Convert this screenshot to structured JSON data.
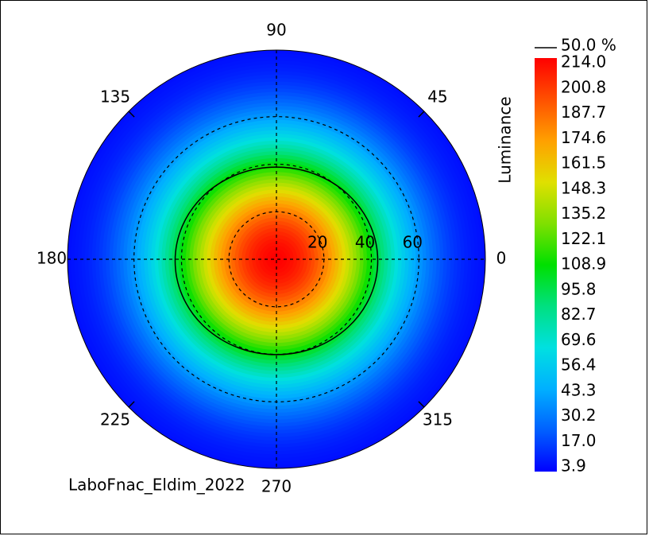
{
  "chart_data": {
    "type": "heatmap",
    "subtype": "polar",
    "quantity": "Luminance",
    "footer_label": "LaboFnac_Eldim_2022",
    "angle_ticks": [
      {
        "deg": 90,
        "label": "90"
      },
      {
        "deg": 45,
        "label": "45"
      },
      {
        "deg": 0,
        "label": "0"
      },
      {
        "deg": 315,
        "label": "315"
      },
      {
        "deg": 270,
        "label": "270"
      },
      {
        "deg": 225,
        "label": "225"
      },
      {
        "deg": 180,
        "label": "180"
      },
      {
        "deg": 135,
        "label": "135"
      }
    ],
    "radial_ticks": [
      {
        "value": 20,
        "label": "20"
      },
      {
        "value": 40,
        "label": "40"
      },
      {
        "value": 60,
        "label": "60"
      }
    ],
    "radial_max": 88,
    "value_range": [
      3.9,
      214.0
    ],
    "peak": {
      "azimuth_deg": 0,
      "incidence": 0,
      "value": 214.0
    },
    "contour": {
      "label": "50.0 %",
      "value": 108.9
    },
    "colorbar_labels": [
      "214.0",
      "200.8",
      "187.7",
      "174.6",
      "161.5",
      "148.3",
      "135.2",
      "122.1",
      "108.9",
      "95.8",
      "82.7",
      "69.6",
      "56.4",
      "43.3",
      "30.2",
      "17.0",
      "3.9"
    ],
    "colormap": [
      "#0000ff",
      "#0060ff",
      "#00b0ff",
      "#00e0e0",
      "#00e080",
      "#00e000",
      "#80e000",
      "#e0e000",
      "#ffa000",
      "#ff5000",
      "#ff0000"
    ]
  }
}
